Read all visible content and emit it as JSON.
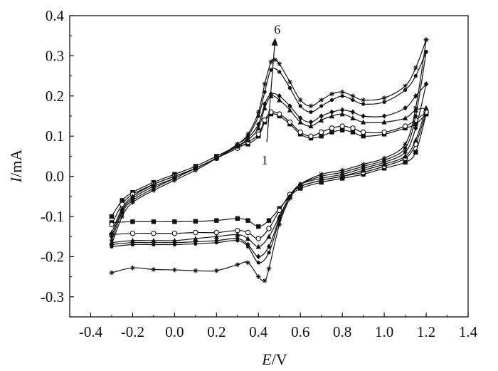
{
  "chart_data": {
    "type": "line",
    "title": "",
    "xlabel": {
      "var": "E",
      "unit": "/V"
    },
    "ylabel": {
      "var": "I",
      "unit": "/mA"
    },
    "xlim": [
      -0.5,
      1.4
    ],
    "ylim": [
      -0.35,
      0.4
    ],
    "x_ticks": [
      -0.4,
      -0.2,
      0.0,
      0.2,
      0.4,
      0.6,
      0.8,
      1.0,
      1.2,
      1.4
    ],
    "x_tick_labels": [
      "-0.4",
      "-0.2",
      "0.0",
      "0.2",
      "0.4",
      "0.6",
      "0.8",
      "1.0",
      "1.2",
      "1.4"
    ],
    "y_ticks": [
      -0.3,
      -0.2,
      -0.1,
      0.0,
      0.1,
      0.2,
      0.3,
      0.4
    ],
    "y_tick_labels": [
      "-0.3",
      "-0.2",
      "-0.1",
      "0.0",
      "0.1",
      "0.2",
      "0.3",
      "0.4"
    ],
    "grid": false,
    "legend": "none",
    "annotations": [
      {
        "text": "6",
        "at_x": 0.49,
        "at_y": 0.365
      },
      {
        "text": "1",
        "at_x": 0.43,
        "at_y": 0.04
      }
    ],
    "arrow": {
      "from": [
        0.44,
        0.085
      ],
      "to": [
        0.48,
        0.345
      ]
    },
    "series": [
      {
        "marker": "square",
        "forward": [
          [
            -0.3,
            -0.1
          ],
          [
            -0.25,
            -0.06
          ],
          [
            -0.2,
            -0.04
          ],
          [
            -0.1,
            -0.015
          ],
          [
            0.0,
            0.005
          ],
          [
            0.1,
            0.025
          ],
          [
            0.2,
            0.05
          ],
          [
            0.3,
            0.075
          ],
          [
            0.35,
            0.08
          ],
          [
            0.4,
            0.1
          ],
          [
            0.43,
            0.135
          ],
          [
            0.46,
            0.155
          ],
          [
            0.5,
            0.15
          ],
          [
            0.55,
            0.13
          ],
          [
            0.6,
            0.105
          ],
          [
            0.65,
            0.095
          ],
          [
            0.7,
            0.1
          ],
          [
            0.75,
            0.11
          ],
          [
            0.8,
            0.115
          ],
          [
            0.85,
            0.11
          ],
          [
            0.9,
            0.1
          ],
          [
            1.0,
            0.105
          ],
          [
            1.1,
            0.12
          ],
          [
            1.15,
            0.13
          ],
          [
            1.2,
            0.155
          ]
        ],
        "reverse": [
          [
            1.2,
            0.155
          ],
          [
            1.15,
            0.06
          ],
          [
            1.1,
            0.035
          ],
          [
            1.0,
            0.02
          ],
          [
            0.9,
            0.005
          ],
          [
            0.8,
            -0.005
          ],
          [
            0.7,
            -0.015
          ],
          [
            0.6,
            -0.03
          ],
          [
            0.55,
            -0.05
          ],
          [
            0.5,
            -0.08
          ],
          [
            0.45,
            -0.11
          ],
          [
            0.4,
            -0.125
          ],
          [
            0.35,
            -0.11
          ],
          [
            0.3,
            -0.105
          ],
          [
            0.2,
            -0.11
          ],
          [
            0.1,
            -0.112
          ],
          [
            0.0,
            -0.113
          ],
          [
            -0.1,
            -0.113
          ],
          [
            -0.2,
            -0.113
          ],
          [
            -0.3,
            -0.115
          ]
        ]
      },
      {
        "marker": "circle",
        "forward": [
          [
            -0.3,
            -0.12
          ],
          [
            -0.25,
            -0.07
          ],
          [
            -0.2,
            -0.045
          ],
          [
            -0.1,
            -0.02
          ],
          [
            0.0,
            0.0
          ],
          [
            0.1,
            0.02
          ],
          [
            0.2,
            0.045
          ],
          [
            0.3,
            0.07
          ],
          [
            0.35,
            0.085
          ],
          [
            0.4,
            0.105
          ],
          [
            0.43,
            0.14
          ],
          [
            0.46,
            0.16
          ],
          [
            0.5,
            0.155
          ],
          [
            0.55,
            0.135
          ],
          [
            0.6,
            0.11
          ],
          [
            0.65,
            0.1
          ],
          [
            0.7,
            0.11
          ],
          [
            0.75,
            0.12
          ],
          [
            0.8,
            0.125
          ],
          [
            0.85,
            0.12
          ],
          [
            0.9,
            0.11
          ],
          [
            1.0,
            0.11
          ],
          [
            1.1,
            0.125
          ],
          [
            1.15,
            0.14
          ],
          [
            1.2,
            0.16
          ]
        ],
        "reverse": [
          [
            1.2,
            0.16
          ],
          [
            1.15,
            0.08
          ],
          [
            1.1,
            0.045
          ],
          [
            1.0,
            0.025
          ],
          [
            0.9,
            0.01
          ],
          [
            0.8,
            0.0
          ],
          [
            0.7,
            -0.01
          ],
          [
            0.6,
            -0.025
          ],
          [
            0.55,
            -0.045
          ],
          [
            0.5,
            -0.085
          ],
          [
            0.45,
            -0.13
          ],
          [
            0.4,
            -0.155
          ],
          [
            0.35,
            -0.14
          ],
          [
            0.3,
            -0.135
          ],
          [
            0.2,
            -0.14
          ],
          [
            0.1,
            -0.14
          ],
          [
            0.0,
            -0.142
          ],
          [
            -0.1,
            -0.142
          ],
          [
            -0.2,
            -0.142
          ],
          [
            -0.3,
            -0.145
          ]
        ]
      },
      {
        "marker": "triangle",
        "forward": [
          [
            -0.3,
            -0.14
          ],
          [
            -0.25,
            -0.08
          ],
          [
            -0.2,
            -0.05
          ],
          [
            -0.1,
            -0.02
          ],
          [
            0.0,
            0.0
          ],
          [
            0.1,
            0.02
          ],
          [
            0.2,
            0.045
          ],
          [
            0.3,
            0.075
          ],
          [
            0.35,
            0.09
          ],
          [
            0.4,
            0.12
          ],
          [
            0.43,
            0.17
          ],
          [
            0.46,
            0.2
          ],
          [
            0.5,
            0.19
          ],
          [
            0.55,
            0.165
          ],
          [
            0.6,
            0.135
          ],
          [
            0.65,
            0.125
          ],
          [
            0.7,
            0.14
          ],
          [
            0.75,
            0.15
          ],
          [
            0.8,
            0.155
          ],
          [
            0.85,
            0.145
          ],
          [
            0.9,
            0.135
          ],
          [
            1.0,
            0.135
          ],
          [
            1.1,
            0.145
          ],
          [
            1.15,
            0.165
          ],
          [
            1.2,
            0.17
          ]
        ],
        "reverse": [
          [
            1.2,
            0.17
          ],
          [
            1.15,
            0.09
          ],
          [
            1.1,
            0.05
          ],
          [
            1.0,
            0.03
          ],
          [
            0.9,
            0.015
          ],
          [
            0.8,
            0.0
          ],
          [
            0.7,
            -0.01
          ],
          [
            0.6,
            -0.025
          ],
          [
            0.55,
            -0.05
          ],
          [
            0.5,
            -0.1
          ],
          [
            0.45,
            -0.15
          ],
          [
            0.4,
            -0.175
          ],
          [
            0.35,
            -0.155
          ],
          [
            0.3,
            -0.145
          ],
          [
            0.2,
            -0.15
          ],
          [
            0.1,
            -0.155
          ],
          [
            0.0,
            -0.16
          ],
          [
            -0.1,
            -0.16
          ],
          [
            -0.2,
            -0.16
          ],
          [
            -0.3,
            -0.165
          ]
        ]
      },
      {
        "marker": "diamond",
        "forward": [
          [
            -0.3,
            -0.15
          ],
          [
            -0.25,
            -0.085
          ],
          [
            -0.2,
            -0.055
          ],
          [
            -0.1,
            -0.025
          ],
          [
            0.0,
            -0.005
          ],
          [
            0.1,
            0.02
          ],
          [
            0.2,
            0.045
          ],
          [
            0.3,
            0.075
          ],
          [
            0.35,
            0.095
          ],
          [
            0.4,
            0.13
          ],
          [
            0.43,
            0.18
          ],
          [
            0.46,
            0.205
          ],
          [
            0.5,
            0.2
          ],
          [
            0.55,
            0.175
          ],
          [
            0.6,
            0.145
          ],
          [
            0.65,
            0.135
          ],
          [
            0.7,
            0.15
          ],
          [
            0.75,
            0.16
          ],
          [
            0.8,
            0.165
          ],
          [
            0.85,
            0.16
          ],
          [
            0.9,
            0.15
          ],
          [
            1.0,
            0.15
          ],
          [
            1.1,
            0.17
          ],
          [
            1.15,
            0.2
          ],
          [
            1.2,
            0.23
          ]
        ],
        "reverse": [
          [
            1.2,
            0.23
          ],
          [
            1.15,
            0.12
          ],
          [
            1.1,
            0.06
          ],
          [
            1.0,
            0.035
          ],
          [
            0.9,
            0.02
          ],
          [
            0.8,
            0.005
          ],
          [
            0.7,
            -0.005
          ],
          [
            0.6,
            -0.02
          ],
          [
            0.55,
            -0.05
          ],
          [
            0.5,
            -0.105
          ],
          [
            0.45,
            -0.175
          ],
          [
            0.4,
            -0.2
          ],
          [
            0.35,
            -0.17
          ],
          [
            0.3,
            -0.155
          ],
          [
            0.2,
            -0.16
          ],
          [
            0.1,
            -0.163
          ],
          [
            0.0,
            -0.165
          ],
          [
            -0.1,
            -0.165
          ],
          [
            -0.2,
            -0.165
          ],
          [
            -0.3,
            -0.17
          ]
        ]
      },
      {
        "marker": "dot",
        "forward": [
          [
            -0.3,
            -0.16
          ],
          [
            -0.25,
            -0.09
          ],
          [
            -0.2,
            -0.06
          ],
          [
            -0.1,
            -0.03
          ],
          [
            0.0,
            -0.005
          ],
          [
            0.1,
            0.02
          ],
          [
            0.2,
            0.045
          ],
          [
            0.3,
            0.08
          ],
          [
            0.35,
            0.1
          ],
          [
            0.4,
            0.15
          ],
          [
            0.43,
            0.21
          ],
          [
            0.46,
            0.265
          ],
          [
            0.5,
            0.26
          ],
          [
            0.55,
            0.22
          ],
          [
            0.6,
            0.175
          ],
          [
            0.65,
            0.16
          ],
          [
            0.7,
            0.175
          ],
          [
            0.75,
            0.19
          ],
          [
            0.8,
            0.2
          ],
          [
            0.85,
            0.19
          ],
          [
            0.9,
            0.18
          ],
          [
            1.0,
            0.185
          ],
          [
            1.1,
            0.215
          ],
          [
            1.15,
            0.25
          ],
          [
            1.2,
            0.31
          ]
        ],
        "reverse": [
          [
            1.2,
            0.31
          ],
          [
            1.15,
            0.15
          ],
          [
            1.1,
            0.07
          ],
          [
            1.0,
            0.04
          ],
          [
            0.9,
            0.025
          ],
          [
            0.8,
            0.01
          ],
          [
            0.7,
            0.0
          ],
          [
            0.6,
            -0.02
          ],
          [
            0.55,
            -0.05
          ],
          [
            0.5,
            -0.11
          ],
          [
            0.45,
            -0.19
          ],
          [
            0.4,
            -0.215
          ],
          [
            0.35,
            -0.175
          ],
          [
            0.3,
            -0.16
          ],
          [
            0.2,
            -0.165
          ],
          [
            0.1,
            -0.168
          ],
          [
            0.0,
            -0.17
          ],
          [
            -0.1,
            -0.17
          ],
          [
            -0.2,
            -0.17
          ],
          [
            -0.3,
            -0.175
          ]
        ]
      },
      {
        "marker": "star",
        "forward": [
          [
            -0.3,
            -0.17
          ],
          [
            -0.25,
            -0.1
          ],
          [
            -0.2,
            -0.065
          ],
          [
            -0.1,
            -0.035
          ],
          [
            0.0,
            -0.01
          ],
          [
            0.1,
            0.015
          ],
          [
            0.2,
            0.045
          ],
          [
            0.3,
            0.08
          ],
          [
            0.35,
            0.105
          ],
          [
            0.4,
            0.16
          ],
          [
            0.43,
            0.23
          ],
          [
            0.46,
            0.285
          ],
          [
            0.48,
            0.29
          ],
          [
            0.5,
            0.28
          ],
          [
            0.55,
            0.235
          ],
          [
            0.6,
            0.19
          ],
          [
            0.65,
            0.175
          ],
          [
            0.7,
            0.19
          ],
          [
            0.75,
            0.205
          ],
          [
            0.8,
            0.21
          ],
          [
            0.85,
            0.2
          ],
          [
            0.9,
            0.19
          ],
          [
            1.0,
            0.195
          ],
          [
            1.1,
            0.225
          ],
          [
            1.15,
            0.27
          ],
          [
            1.2,
            0.34
          ]
        ],
        "reverse": [
          [
            1.2,
            0.34
          ],
          [
            1.15,
            0.17
          ],
          [
            1.1,
            0.08
          ],
          [
            1.0,
            0.045
          ],
          [
            0.9,
            0.03
          ],
          [
            0.8,
            0.015
          ],
          [
            0.7,
            0.005
          ],
          [
            0.6,
            -0.02
          ],
          [
            0.55,
            -0.055
          ],
          [
            0.5,
            -0.12
          ],
          [
            0.45,
            -0.23
          ],
          [
            0.43,
            -0.26
          ],
          [
            0.4,
            -0.25
          ],
          [
            0.35,
            -0.215
          ],
          [
            0.3,
            -0.22
          ],
          [
            0.2,
            -0.235
          ],
          [
            0.1,
            -0.235
          ],
          [
            0.0,
            -0.233
          ],
          [
            -0.1,
            -0.232
          ],
          [
            -0.2,
            -0.228
          ],
          [
            -0.3,
            -0.24
          ]
        ]
      }
    ]
  }
}
